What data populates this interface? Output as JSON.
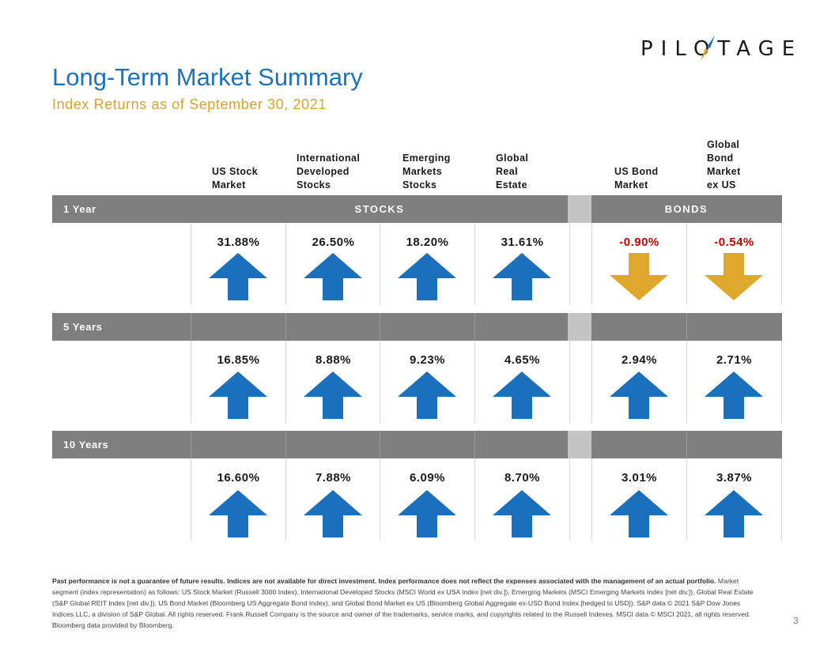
{
  "logo": {
    "text": "PILOTAGE",
    "icon": "compass-needle-icon"
  },
  "header": {
    "title": "Long-Term Market Summary",
    "subtitle": "Index Returns as of September 30, 2021"
  },
  "columns": [
    "US Stock\nMarket",
    "International\nDeveloped\nStocks",
    "Emerging\nMarkets\nStocks",
    "Global\nReal\nEstate",
    "US Bond\nMarket",
    "Global\nBond\nMarket\nex US"
  ],
  "groups": {
    "stocks": "STOCKS",
    "bonds": "BONDS"
  },
  "periods": [
    {
      "label": "1 Year",
      "values": [
        "31.88%",
        "26.50%",
        "18.20%",
        "31.61%",
        "-0.90%",
        "-0.54%"
      ]
    },
    {
      "label": "5 Years",
      "values": [
        "16.85%",
        "8.88%",
        "9.23%",
        "4.65%",
        "2.94%",
        "2.71%"
      ]
    },
    {
      "label": "10 Years",
      "values": [
        "16.60%",
        "7.88%",
        "6.09%",
        "8.70%",
        "3.01%",
        "3.87%"
      ]
    }
  ],
  "colors": {
    "title": "#1d72be",
    "subtitle": "#d9a22a",
    "up_arrow": "#1b70bd",
    "down_arrow": "#dea82c",
    "negative": "#c00000",
    "band": "#7f7f7f"
  },
  "footer": {
    "bold": "Past performance is not a guarantee of future results. Indices are not available for direct investment. Index performance does not reflect the expenses associated with the management of an actual portfolio.",
    "text": " Market segment (index representation) as follows: US Stock Market (Russell 3000 Index), International Developed Stocks (MSCI World ex USA Index [net div.]), Emerging Markets (MSCI Emerging Markets Index [net div.]), Global Real Estate (S&P Global REIT Index [net div.]), US Bond Market (Bloomberg US Aggregate Bond Index), and Global Bond Market ex US (Bloomberg Global Aggregate ex-USD Bond Index [hedged to USD]). S&P data © 2021 S&P Dow Jones Indices LLC, a division of S&P Global. All rights reserved. Frank Russell Company is the source and owner of the trademarks, service marks, and copyrights related to the Russell Indexes. MSCI data © MSCI 2021, all rights reserved. Bloomberg data provided by Bloomberg."
  },
  "page_number": "3"
}
